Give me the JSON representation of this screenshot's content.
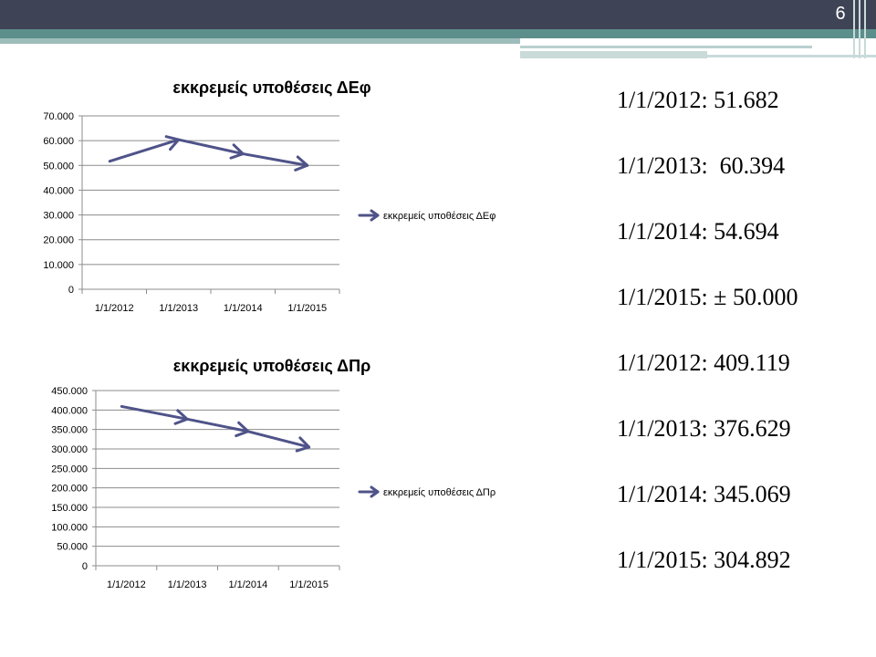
{
  "slide": {
    "number": "6"
  },
  "chart_data": [
    {
      "type": "line",
      "title": "εκκρεμείς υποθέσεις ΔΕφ",
      "categories": [
        "1/1/2012",
        "1/1/2013",
        "1/1/2014",
        "1/1/2015"
      ],
      "series": [
        {
          "name": "εκκρεμείς υποθέσεις ΔΕφ",
          "values": [
            51682,
            60394,
            54694,
            50000
          ]
        }
      ],
      "yticks": [
        "0",
        "10.000",
        "20.000",
        "30.000",
        "40.000",
        "50.000",
        "60.000",
        "70.000"
      ],
      "ylim": [
        0,
        70000
      ],
      "grid": true,
      "legend": "right",
      "color": "#4f5389"
    },
    {
      "type": "line",
      "title": "εκκρεμείς υποθέσεις ΔΠρ",
      "categories": [
        "1/1/2012",
        "1/1/2013",
        "1/1/2014",
        "1/1/2015"
      ],
      "series": [
        {
          "name": "εκκρεμείς υποθέσεις ΔΠρ",
          "values": [
            409119,
            376629,
            345069,
            304892
          ]
        }
      ],
      "yticks": [
        "0",
        "50.000",
        "100.000",
        "150.000",
        "200.000",
        "250.000",
        "300.000",
        "350.000",
        "400.000",
        "450.000"
      ],
      "ylim": [
        0,
        450000
      ],
      "grid": true,
      "legend": "right",
      "color": "#4f5389"
    }
  ],
  "stats": [
    "1/1/2012: 51.682",
    "1/1/2013:  60.394",
    "1/1/2014: 54.694",
    "1/1/2015: ± 50.000",
    "1/1/2012: 409.119",
    "1/1/2013: 376.629",
    "1/1/2014: 345.069",
    "1/1/2015: 304.892"
  ]
}
